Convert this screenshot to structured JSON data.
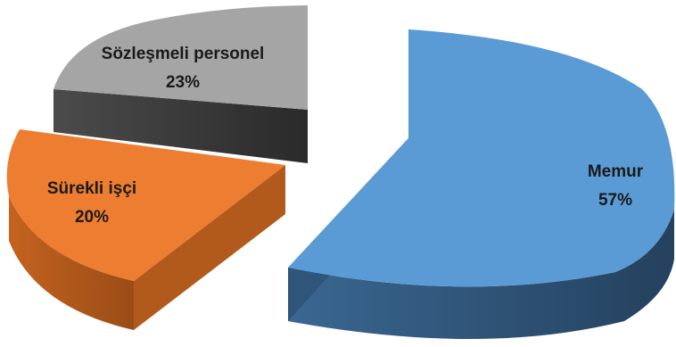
{
  "chart_data": {
    "type": "pie",
    "style": "3d-exploded",
    "title": "",
    "slices": [
      {
        "label": "Memur",
        "value": 57,
        "display": "57%",
        "color": "#5B9BD5"
      },
      {
        "label": "Sürekli işçi",
        "value": 20,
        "display": "20%",
        "color": "#ED7D31"
      },
      {
        "label": "Sözleşmeli personel",
        "value": 23,
        "display": "23%",
        "color": "#A5A5A5"
      }
    ],
    "legend": "none",
    "data_labels": "inside"
  }
}
